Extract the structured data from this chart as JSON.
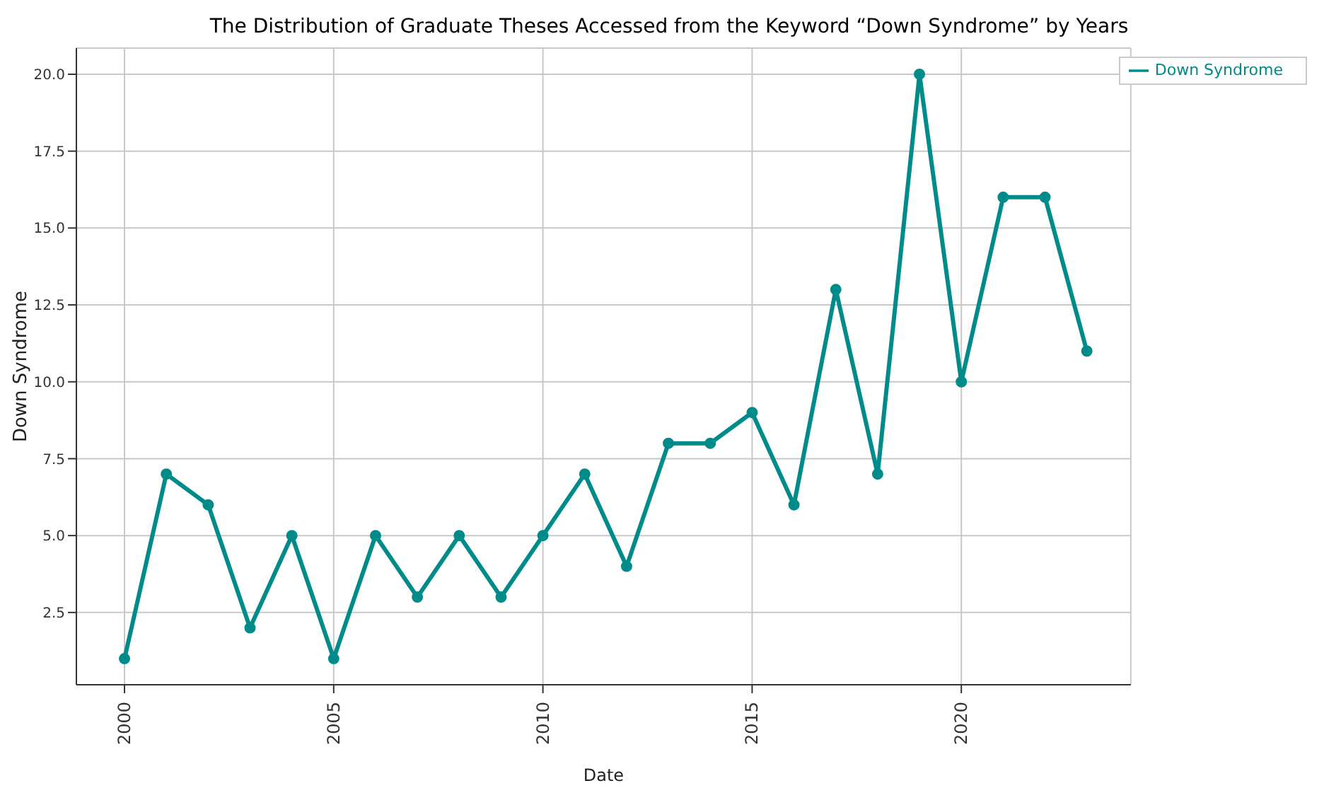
{
  "chart_data": {
    "type": "line",
    "title": "The Distribution of Graduate Theses Accessed from the Keyword “Down Syndrome” by Years",
    "xlabel": "Date",
    "ylabel": "Down Syndrome",
    "x": [
      2000,
      2001,
      2002,
      2003,
      2004,
      2005,
      2006,
      2007,
      2008,
      2009,
      2010,
      2011,
      2012,
      2013,
      2014,
      2015,
      2016,
      2017,
      2018,
      2019,
      2020,
      2021,
      2022,
      2023
    ],
    "series": [
      {
        "name": "Down Syndrome",
        "color": "#008b8b",
        "values": [
          1,
          7,
          6,
          2,
          5,
          1,
          5,
          3,
          5,
          3,
          5,
          7,
          4,
          8,
          8,
          9,
          6,
          13,
          7,
          20,
          10,
          16,
          16,
          11
        ]
      }
    ],
    "xlim": [
      1998.85,
      2024.05
    ],
    "xticks": [
      2000,
      2005,
      2010,
      2015,
      2020
    ],
    "ylim": [
      0.15,
      20.85
    ],
    "yticks": [
      {
        "value": 2.5,
        "label": "2.5"
      },
      {
        "value": 5,
        "label": "5.0"
      },
      {
        "value": 7.5,
        "label": "7.5"
      },
      {
        "value": 10,
        "label": "10.0"
      },
      {
        "value": 12.5,
        "label": "12.5"
      },
      {
        "value": 15,
        "label": "15.0"
      },
      {
        "value": 17.5,
        "label": "17.5"
      },
      {
        "value": 20,
        "label": "20.0"
      }
    ],
    "grid": true,
    "legend": "top right",
    "marker": "circle",
    "line_style": "solid"
  }
}
